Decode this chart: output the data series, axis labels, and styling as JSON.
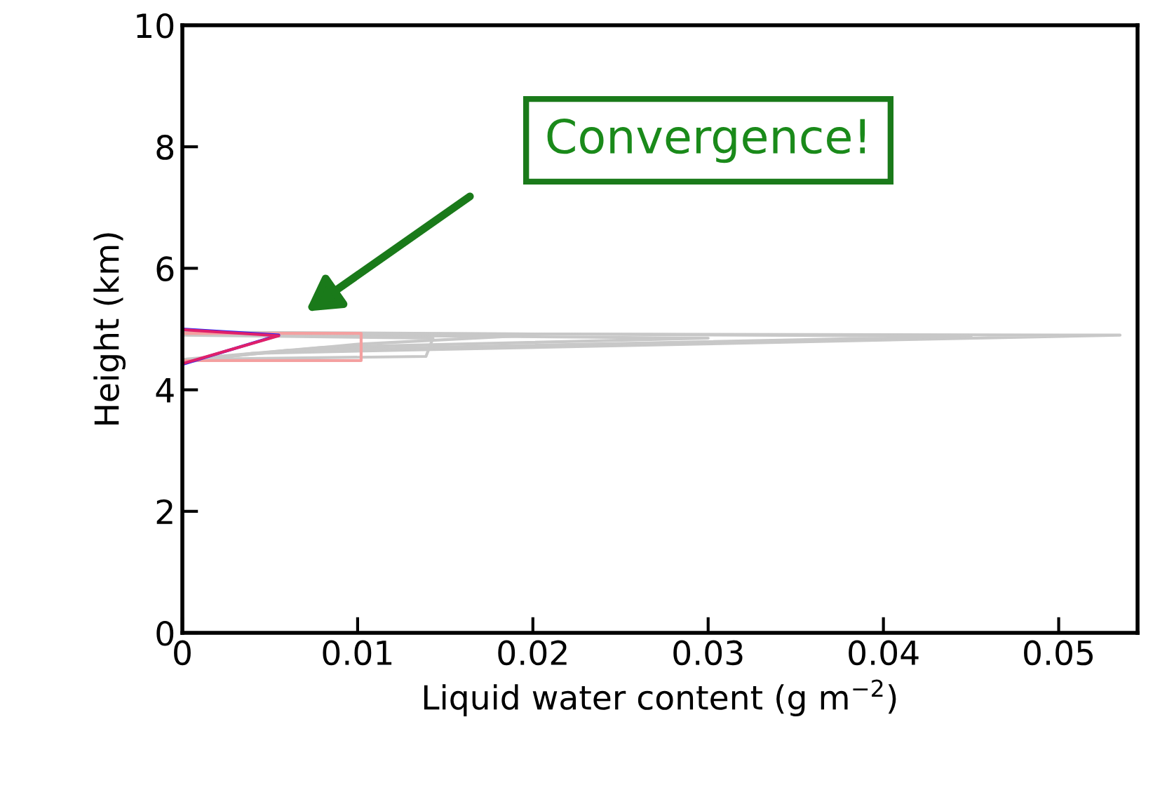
{
  "chart_data": {
    "type": "line",
    "xlabel": "Liquid water content (g m$^{−2}$)",
    "ylabel": "Height (km)",
    "xlim": [
      0,
      0.0545
    ],
    "ylim": [
      0,
      10
    ],
    "xticks": [
      0,
      0.01,
      0.02,
      0.03,
      0.04,
      0.05
    ],
    "yticks": [
      0,
      2,
      4,
      6,
      8,
      10
    ],
    "grid": false,
    "legend": false,
    "marker": "none",
    "line_style": "solid",
    "annotations": [
      "Convergence!"
    ],
    "series": [
      {
        "color": "#c8c8c8",
        "x": [
          0,
          0.0535,
          0.004,
          0
        ],
        "values": [
          4.93,
          4.9,
          4.6,
          4.45
        ]
      },
      {
        "color": "#c8c8c8",
        "x": [
          0,
          0.045,
          0.006,
          0
        ],
        "values": [
          4.95,
          4.88,
          4.65,
          4.47
        ]
      },
      {
        "color": "#c8c8c8",
        "x": [
          0,
          0.03,
          0.008,
          0
        ],
        "values": [
          4.92,
          4.85,
          4.7,
          4.5
        ]
      },
      {
        "color": "#c8c8c8",
        "x": [
          0,
          0.02,
          0.01,
          0
        ],
        "values": [
          4.94,
          4.9,
          4.75,
          4.48
        ]
      },
      {
        "color": "#c8c8c8",
        "x": [
          0,
          0.0143,
          0.0139,
          0
        ],
        "values": [
          4.9,
          4.85,
          4.55,
          4.5
        ]
      },
      {
        "color": "#f4a0a0",
        "x": [
          0,
          0.0102,
          0.0102,
          0
        ],
        "values": [
          4.93,
          4.93,
          4.48,
          4.48
        ]
      },
      {
        "color": "#2020ff",
        "x": [
          0,
          0.0055,
          0
        ],
        "values": [
          5.0,
          4.9,
          4.42
        ]
      },
      {
        "color": "#e0206a",
        "x": [
          0,
          0.0055,
          0
        ],
        "values": [
          4.99,
          4.89,
          4.43
        ]
      }
    ]
  }
}
